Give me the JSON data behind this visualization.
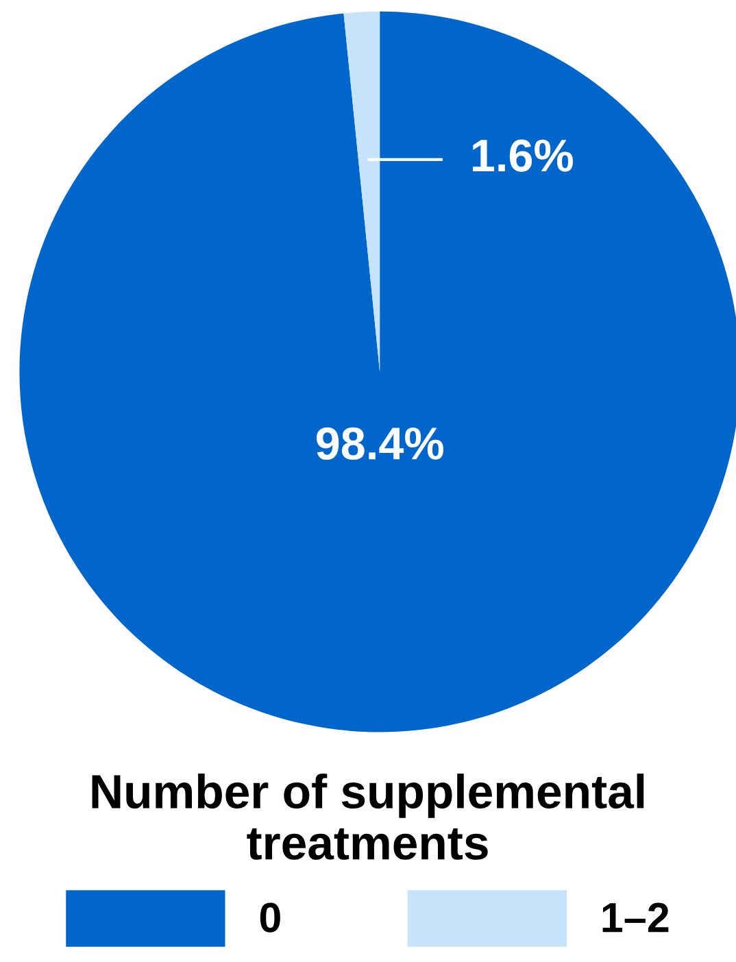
{
  "chart_data": {
    "type": "pie",
    "categories": [
      "0",
      "1–2"
    ],
    "values": [
      98.4,
      1.6
    ],
    "value_labels": [
      "98.4%",
      "1.6%"
    ],
    "colors": [
      "#0066cc",
      "#c5e3fa"
    ],
    "legend": "bottom",
    "legend_title": "Number of supplemental treatments"
  }
}
